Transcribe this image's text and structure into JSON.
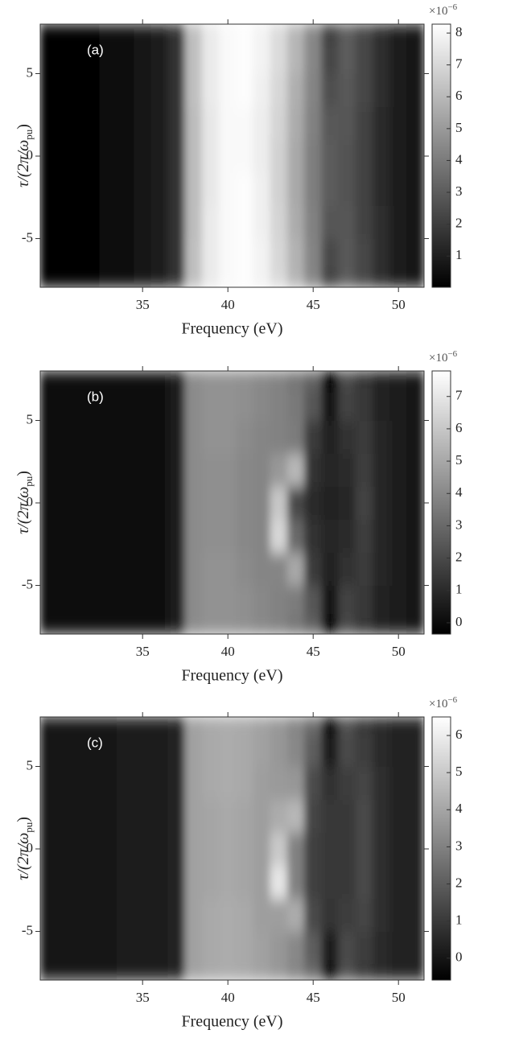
{
  "chart_data": [
    {
      "type": "heatmap",
      "panel_label": "(a)",
      "x_label": "Frequency (eV)",
      "y_label": {
        "main": "τ/(2π/ω",
        "sub": "pu",
        "tail": ")"
      },
      "x": [
        30,
        31,
        32,
        33,
        34,
        35,
        36,
        37,
        38,
        39,
        40,
        41,
        42,
        43,
        44,
        45,
        46,
        47,
        48,
        49,
        50,
        51
      ],
      "y": [
        -8,
        -6,
        -4,
        -2,
        0,
        2,
        4,
        6,
        8
      ],
      "z": [
        [
          0.1,
          0.1,
          0.2,
          0.3,
          0.4,
          0.6,
          0.9,
          1.6,
          6.2,
          7.6,
          8.1,
          8.2,
          7.9,
          7.1,
          5.9,
          4.4,
          2.2,
          3.0,
          2.3,
          1.5,
          0.9,
          0.6
        ],
        [
          0.1,
          0.1,
          0.2,
          0.3,
          0.4,
          0.6,
          0.9,
          1.6,
          6.2,
          7.6,
          8.1,
          8.2,
          7.9,
          7.0,
          5.8,
          4.3,
          2.4,
          2.9,
          2.3,
          1.5,
          0.9,
          0.6
        ],
        [
          0.1,
          0.1,
          0.2,
          0.3,
          0.4,
          0.6,
          0.9,
          1.6,
          6.1,
          7.6,
          8.1,
          8.2,
          7.8,
          6.9,
          5.6,
          4.2,
          2.8,
          2.8,
          2.2,
          1.5,
          0.9,
          0.6
        ],
        [
          0.1,
          0.1,
          0.2,
          0.3,
          0.4,
          0.6,
          0.9,
          1.6,
          6.1,
          7.5,
          8.1,
          8.2,
          7.8,
          6.8,
          5.5,
          4.1,
          3.0,
          2.7,
          2.2,
          1.4,
          0.9,
          0.6
        ],
        [
          0.1,
          0.1,
          0.2,
          0.3,
          0.4,
          0.6,
          0.9,
          1.6,
          6.1,
          7.5,
          8.1,
          8.1,
          7.7,
          6.8,
          5.5,
          4.1,
          3.0,
          2.7,
          2.2,
          1.4,
          0.9,
          0.6
        ],
        [
          0.1,
          0.1,
          0.2,
          0.3,
          0.4,
          0.6,
          0.9,
          1.6,
          6.1,
          7.5,
          8.1,
          8.1,
          7.7,
          6.9,
          5.6,
          4.2,
          2.9,
          2.8,
          2.2,
          1.4,
          0.9,
          0.6
        ],
        [
          0.1,
          0.1,
          0.2,
          0.3,
          0.4,
          0.6,
          0.9,
          1.6,
          6.2,
          7.6,
          8.1,
          8.2,
          7.8,
          7.0,
          5.7,
          4.3,
          2.6,
          2.9,
          2.3,
          1.5,
          0.9,
          0.6
        ],
        [
          0.1,
          0.1,
          0.2,
          0.3,
          0.4,
          0.6,
          0.9,
          1.6,
          6.2,
          7.6,
          8.1,
          8.2,
          7.9,
          7.1,
          5.9,
          4.4,
          2.3,
          3.0,
          2.3,
          1.5,
          0.9,
          0.6
        ],
        [
          0.1,
          0.1,
          0.2,
          0.3,
          0.4,
          0.6,
          0.9,
          1.6,
          6.2,
          7.6,
          8.1,
          8.2,
          7.9,
          7.1,
          5.9,
          4.4,
          2.1,
          3.0,
          2.3,
          1.5,
          0.9,
          0.6
        ]
      ],
      "xlim": [
        29,
        51.5
      ],
      "ylim": [
        -7.95,
        8
      ],
      "xticks": [
        35,
        40,
        45,
        50
      ],
      "yticks": [
        -5,
        0,
        5
      ],
      "colorbar": {
        "clim": [
          0.02,
          8.28
        ],
        "ticks": [
          1,
          2,
          3,
          4,
          5,
          6,
          7,
          8
        ],
        "multiplier": {
          "base": "×10",
          "exponent": "−6"
        }
      },
      "colormap": [
        "#000000",
        "#ffffff"
      ]
    },
    {
      "type": "heatmap",
      "panel_label": "(b)",
      "x_label": "Frequency (eV)",
      "y_label": {
        "main": "τ/(2π/ω",
        "sub": "pu",
        "tail": ")"
      },
      "x": [
        30,
        31,
        32,
        33,
        34,
        35,
        36,
        37,
        38,
        39,
        40,
        41,
        42,
        43,
        44,
        45,
        46,
        47,
        48,
        49,
        50,
        51
      ],
      "y": [
        -8,
        -6,
        -4,
        -2,
        0,
        2,
        4,
        6,
        8
      ],
      "z": [
        [
          0.0,
          0.0,
          0.0,
          0.1,
          0.1,
          0.1,
          0.2,
          0.5,
          4.1,
          4.3,
          4.3,
          4.2,
          4.0,
          3.8,
          3.4,
          2.8,
          -0.2,
          2.0,
          1.3,
          0.8,
          0.5,
          0.4
        ],
        [
          0.0,
          0.0,
          0.0,
          0.1,
          0.1,
          0.1,
          0.2,
          0.5,
          4.1,
          4.3,
          4.3,
          4.2,
          4.0,
          3.8,
          3.6,
          2.4,
          0.3,
          1.8,
          1.4,
          0.8,
          0.5,
          0.4
        ],
        [
          0.0,
          0.0,
          0.0,
          0.1,
          0.1,
          0.1,
          0.2,
          0.5,
          4.1,
          4.3,
          4.3,
          4.1,
          3.9,
          3.9,
          5.0,
          1.5,
          0.8,
          1.2,
          1.5,
          0.9,
          0.5,
          0.4
        ],
        [
          0.0,
          0.0,
          0.0,
          0.1,
          0.1,
          0.1,
          0.2,
          0.5,
          4.1,
          4.2,
          4.2,
          4.0,
          3.9,
          6.5,
          3.0,
          1.2,
          0.9,
          1.0,
          1.6,
          0.9,
          0.5,
          0.4
        ],
        [
          0.0,
          0.0,
          0.0,
          0.1,
          0.1,
          0.1,
          0.2,
          0.5,
          4.1,
          4.2,
          4.2,
          4.0,
          3.9,
          6.0,
          2.0,
          1.0,
          0.8,
          0.9,
          1.8,
          0.9,
          0.5,
          0.4
        ],
        [
          0.0,
          0.0,
          0.0,
          0.1,
          0.1,
          0.1,
          0.2,
          0.5,
          4.1,
          4.2,
          4.2,
          4.0,
          3.9,
          4.5,
          5.5,
          1.2,
          0.9,
          1.0,
          1.6,
          0.9,
          0.5,
          0.4
        ],
        [
          0.0,
          0.0,
          0.0,
          0.1,
          0.1,
          0.1,
          0.2,
          0.5,
          4.1,
          4.3,
          4.3,
          4.1,
          3.9,
          3.8,
          3.6,
          1.5,
          0.8,
          1.2,
          1.5,
          0.9,
          0.5,
          0.4
        ],
        [
          0.0,
          0.0,
          0.0,
          0.1,
          0.1,
          0.1,
          0.2,
          0.5,
          4.1,
          4.3,
          4.3,
          4.2,
          4.0,
          3.8,
          3.5,
          2.4,
          0.3,
          1.8,
          1.4,
          0.8,
          0.5,
          0.4
        ],
        [
          0.0,
          0.0,
          0.0,
          0.1,
          0.1,
          0.1,
          0.2,
          0.5,
          4.1,
          4.3,
          4.3,
          4.2,
          4.0,
          3.8,
          3.4,
          2.8,
          -0.2,
          2.0,
          1.3,
          0.8,
          0.5,
          0.4
        ]
      ],
      "xlim": [
        29,
        51.5
      ],
      "ylim": [
        -7.95,
        8
      ],
      "xticks": [
        35,
        40,
        45,
        50
      ],
      "yticks": [
        -5,
        0,
        5
      ],
      "colorbar": {
        "clim": [
          -0.35,
          7.79
        ],
        "ticks": [
          0,
          1,
          2,
          3,
          4,
          5,
          6,
          7
        ],
        "multiplier": {
          "base": "×10",
          "exponent": "−6"
        }
      },
      "colormap": [
        "#000000",
        "#ffffff"
      ]
    },
    {
      "type": "heatmap",
      "panel_label": "(c)",
      "x_label": "Frequency (eV)",
      "y_label": {
        "main": "τ/(2π/ω",
        "sub": "pu",
        "tail": ")"
      },
      "x": [
        30,
        31,
        32,
        33,
        34,
        35,
        36,
        37,
        38,
        39,
        40,
        41,
        42,
        43,
        44,
        45,
        46,
        47,
        48,
        49,
        50,
        51
      ],
      "y": [
        -8,
        -6,
        -4,
        -2,
        0,
        2,
        4,
        6,
        8
      ],
      "z": [
        [
          0.1,
          0.1,
          0.1,
          0.1,
          0.2,
          0.2,
          0.2,
          0.4,
          3.9,
          4.1,
          4.2,
          4.1,
          3.9,
          3.6,
          3.1,
          2.4,
          -0.3,
          1.6,
          1.0,
          0.6,
          0.4,
          0.3
        ],
        [
          0.1,
          0.1,
          0.1,
          0.1,
          0.2,
          0.2,
          0.2,
          0.4,
          3.9,
          4.1,
          4.2,
          4.1,
          3.9,
          3.6,
          3.2,
          2.0,
          0.2,
          1.4,
          1.1,
          0.6,
          0.4,
          0.3
        ],
        [
          0.1,
          0.1,
          0.1,
          0.1,
          0.2,
          0.2,
          0.2,
          0.4,
          3.9,
          4.1,
          4.2,
          4.1,
          3.8,
          3.8,
          4.2,
          1.4,
          0.9,
          1.1,
          1.3,
          0.7,
          0.4,
          0.3
        ],
        [
          0.1,
          0.1,
          0.1,
          0.1,
          0.2,
          0.2,
          0.2,
          0.4,
          3.9,
          4.0,
          4.1,
          4.0,
          3.8,
          5.8,
          3.0,
          1.2,
          1.0,
          1.0,
          1.4,
          0.7,
          0.4,
          0.3
        ],
        [
          0.1,
          0.1,
          0.1,
          0.1,
          0.2,
          0.2,
          0.2,
          0.4,
          3.9,
          4.0,
          4.1,
          4.0,
          3.8,
          5.0,
          3.0,
          1.2,
          1.0,
          1.0,
          1.4,
          0.7,
          0.4,
          0.3
        ],
        [
          0.1,
          0.1,
          0.1,
          0.1,
          0.2,
          0.2,
          0.2,
          0.4,
          3.9,
          4.0,
          4.1,
          4.0,
          3.8,
          4.2,
          4.5,
          1.3,
          1.0,
          1.0,
          1.4,
          0.7,
          0.4,
          0.3
        ],
        [
          0.1,
          0.1,
          0.1,
          0.1,
          0.2,
          0.2,
          0.2,
          0.4,
          3.9,
          4.1,
          4.2,
          4.1,
          3.8,
          3.7,
          3.6,
          1.5,
          0.8,
          1.1,
          1.3,
          0.7,
          0.4,
          0.3
        ],
        [
          0.1,
          0.1,
          0.1,
          0.1,
          0.2,
          0.2,
          0.2,
          0.4,
          3.9,
          4.1,
          4.2,
          4.1,
          3.9,
          3.6,
          3.2,
          2.0,
          0.2,
          1.4,
          1.1,
          0.6,
          0.4,
          0.3
        ],
        [
          0.1,
          0.1,
          0.1,
          0.1,
          0.2,
          0.2,
          0.2,
          0.4,
          3.9,
          4.1,
          4.2,
          4.1,
          3.9,
          3.6,
          3.1,
          2.4,
          -0.3,
          1.6,
          1.0,
          0.6,
          0.4,
          0.3
        ]
      ],
      "xlim": [
        29,
        51.5
      ],
      "ylim": [
        -7.95,
        8
      ],
      "xticks": [
        35,
        40,
        45,
        50
      ],
      "yticks": [
        -5,
        0,
        5
      ],
      "colorbar": {
        "clim": [
          -0.59,
          6.5
        ],
        "ticks": [
          0,
          1,
          2,
          3,
          4,
          5,
          6
        ],
        "multiplier": {
          "base": "×10",
          "exponent": "−6"
        }
      },
      "colormap": [
        "#000000",
        "#ffffff"
      ]
    }
  ]
}
